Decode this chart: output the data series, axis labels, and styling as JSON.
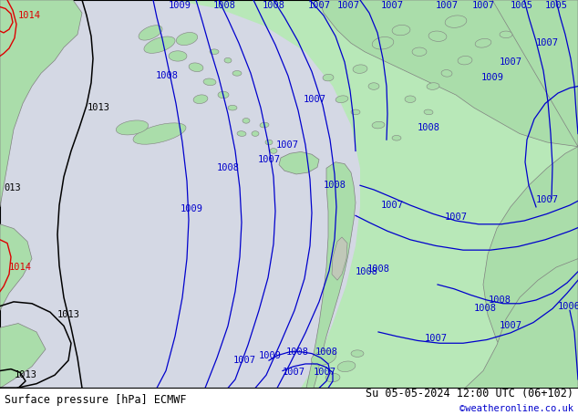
{
  "title_left": "Surface pressure [hPa] ECMWF",
  "title_right": "Su 05-05-2024 12:00 UTC (06+102)",
  "copyright": "©weatheronline.co.uk",
  "sea_color": "#b8e8b8",
  "land_color": "#aaddaa",
  "low_pressure_color": "#d4d8e4",
  "isobar_color": "#0000cc",
  "coast_color": "#808080",
  "black_isobar_color": "#000000",
  "red_isobar_color": "#dd0000",
  "label_fontsize": 7.5,
  "title_fontsize": 8.5,
  "copyright_fontsize": 7.5,
  "copyright_color": "#0000cc"
}
